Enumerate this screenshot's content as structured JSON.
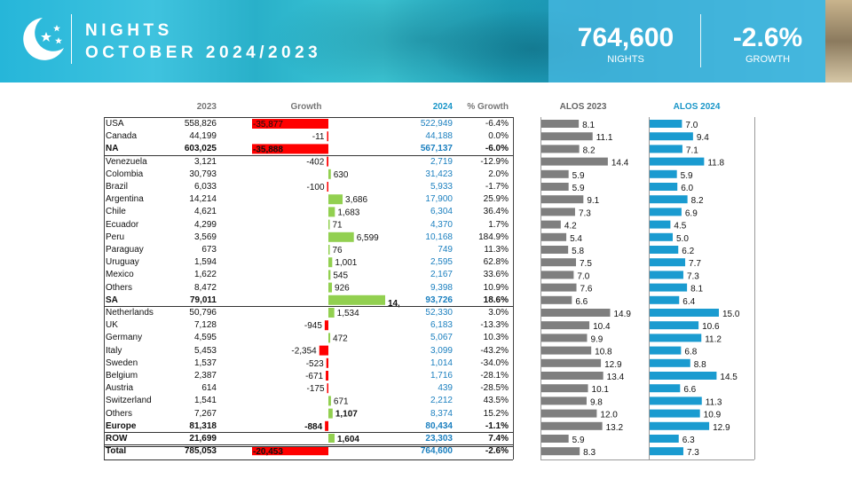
{
  "header": {
    "title_line1": "NIGHTS",
    "title_line2": "OCTOBER 2024/2023",
    "kpi_value": "764,600",
    "kpi_label": "NIGHTS",
    "growth_value": "-2.6%",
    "growth_label": "GROWTH",
    "icon": "moon-stars-icon"
  },
  "columns": {
    "y2023": "2023",
    "growth": "Growth",
    "y2024": "2024",
    "pct": "% Growth",
    "alos2023": "ALOS 2023",
    "alos2024": "ALOS 2024"
  },
  "colors": {
    "negative": "#ff0000",
    "positive": "#92d050",
    "alos2023": "#7f7f7f",
    "alos2024": "#1a9bd0",
    "blue_text": "#1a7fbf"
  },
  "chart_data": {
    "type": "table",
    "rows": [
      {
        "label": "USA",
        "v2023": "558,826",
        "growth": -35877,
        "growth_label": "-35,877",
        "v2024": "522,949",
        "pct": "-6.4%",
        "alos2023": 8.1,
        "alos2024": 7.0,
        "alos2023_label": "8.1",
        "alos2024_label": "7.0",
        "bold": false
      },
      {
        "label": "Canada",
        "v2023": "44,199",
        "growth": -11,
        "growth_label": "-11",
        "v2024": "44,188",
        "pct": "0.0%",
        "alos2023": 11.1,
        "alos2024": 9.4,
        "alos2023_label": "11.1",
        "alos2024_label": "9.4",
        "bold": false
      },
      {
        "label": "NA",
        "v2023": "603,025",
        "growth": -35888,
        "growth_label": "-35,888",
        "v2024": "567,137",
        "pct": "-6.0%",
        "alos2023": 8.2,
        "alos2024": 7.1,
        "alos2023_label": "8.2",
        "alos2024_label": "7.1",
        "bold": true
      },
      {
        "label": "Venezuela",
        "v2023": "3,121",
        "growth": -402,
        "growth_label": "-402",
        "v2024": "2,719",
        "pct": "-12.9%",
        "alos2023": 14.4,
        "alos2024": 11.8,
        "alos2023_label": "14.4",
        "alos2024_label": "11.8",
        "bold": false
      },
      {
        "label": "Colombia",
        "v2023": "30,793",
        "growth": 630,
        "growth_label": "630",
        "v2024": "31,423",
        "pct": "2.0%",
        "alos2023": 5.9,
        "alos2024": 5.9,
        "alos2023_label": "5.9",
        "alos2024_label": "5.9",
        "bold": false
      },
      {
        "label": "Brazil",
        "v2023": "6,033",
        "growth": -100,
        "growth_label": "-100",
        "v2024": "5,933",
        "pct": "-1.7%",
        "alos2023": 5.9,
        "alos2024": 6.0,
        "alos2023_label": "5.9",
        "alos2024_label": "6.0",
        "bold": false
      },
      {
        "label": "Argentina",
        "v2023": "14,214",
        "growth": 3686,
        "growth_label": "3,686",
        "v2024": "17,900",
        "pct": "25.9%",
        "alos2023": 9.1,
        "alos2024": 8.2,
        "alos2023_label": "9.1",
        "alos2024_label": "8.2",
        "bold": false
      },
      {
        "label": "Chile",
        "v2023": "4,621",
        "growth": 1683,
        "growth_label": "1,683",
        "v2024": "6,304",
        "pct": "36.4%",
        "alos2023": 7.3,
        "alos2024": 6.9,
        "alos2023_label": "7.3",
        "alos2024_label": "6.9",
        "bold": false
      },
      {
        "label": "Ecuador",
        "v2023": "4,299",
        "growth": 71,
        "growth_label": "71",
        "v2024": "4,370",
        "pct": "1.7%",
        "alos2023": 4.2,
        "alos2024": 4.5,
        "alos2023_label": "4.2",
        "alos2024_label": "4.5",
        "bold": false
      },
      {
        "label": "Peru",
        "v2023": "3,569",
        "growth": 6599,
        "growth_label": "6,599",
        "v2024": "10,168",
        "pct": "184.9%",
        "alos2023": 5.4,
        "alos2024": 5.0,
        "alos2023_label": "5.4",
        "alos2024_label": "5.0",
        "bold": false
      },
      {
        "label": "Paraguay",
        "v2023": "673",
        "growth": 76,
        "growth_label": "76",
        "v2024": "749",
        "pct": "11.3%",
        "alos2023": 5.8,
        "alos2024": 6.2,
        "alos2023_label": "5.8",
        "alos2024_label": "6.2",
        "bold": false
      },
      {
        "label": "Uruguay",
        "v2023": "1,594",
        "growth": 1001,
        "growth_label": "1,001",
        "v2024": "2,595",
        "pct": "62.8%",
        "alos2023": 7.5,
        "alos2024": 7.7,
        "alos2023_label": "7.5",
        "alos2024_label": "7.7",
        "bold": false
      },
      {
        "label": "Mexico",
        "v2023": "1,622",
        "growth": 545,
        "growth_label": "545",
        "v2024": "2,167",
        "pct": "33.6%",
        "alos2023": 7.0,
        "alos2024": 7.3,
        "alos2023_label": "7.0",
        "alos2024_label": "7.3",
        "bold": false
      },
      {
        "label": "Others",
        "v2023": "8,472",
        "growth": 926,
        "growth_label": "926",
        "v2024": "9,398",
        "pct": "10.9%",
        "alos2023": 7.6,
        "alos2024": 8.1,
        "alos2023_label": "7.6",
        "alos2024_label": "8.1",
        "bold": false
      },
      {
        "label": "SA",
        "v2023": "79,011",
        "growth": 14715,
        "growth_label": "14,715",
        "v2024": "93,726",
        "pct": "18.6%",
        "alos2023": 6.6,
        "alos2024": 6.4,
        "alos2023_label": "6.6",
        "alos2024_label": "6.4",
        "bold": true
      },
      {
        "label": "Netherlands",
        "v2023": "50,796",
        "growth": 1534,
        "growth_label": "1,534",
        "v2024": "52,330",
        "pct": "3.0%",
        "alos2023": 14.9,
        "alos2024": 15.0,
        "alos2023_label": "14.9",
        "alos2024_label": "15.0",
        "bold": false
      },
      {
        "label": "UK",
        "v2023": "7,128",
        "growth": -945,
        "growth_label": "-945",
        "v2024": "6,183",
        "pct": "-13.3%",
        "alos2023": 10.4,
        "alos2024": 10.6,
        "alos2023_label": "10.4",
        "alos2024_label": "10.6",
        "bold": false
      },
      {
        "label": "Germany",
        "v2023": "4,595",
        "growth": 472,
        "growth_label": "472",
        "v2024": "5,067",
        "pct": "10.3%",
        "alos2023": 9.9,
        "alos2024": 11.2,
        "alos2023_label": "9.9",
        "alos2024_label": "11.2",
        "bold": false
      },
      {
        "label": "Italy",
        "v2023": "5,453",
        "growth": -2354,
        "growth_label": "-2,354",
        "v2024": "3,099",
        "pct": "-43.2%",
        "alos2023": 10.8,
        "alos2024": 6.8,
        "alos2023_label": "10.8",
        "alos2024_label": "6.8",
        "bold": false
      },
      {
        "label": "Sweden",
        "v2023": "1,537",
        "growth": -523,
        "growth_label": "-523",
        "v2024": "1,014",
        "pct": "-34.0%",
        "alos2023": 12.9,
        "alos2024": 8.8,
        "alos2023_label": "12.9",
        "alos2024_label": "8.8",
        "bold": false
      },
      {
        "label": "Belgium",
        "v2023": "2,387",
        "growth": -671,
        "growth_label": "-671",
        "v2024": "1,716",
        "pct": "-28.1%",
        "alos2023": 13.4,
        "alos2024": 14.5,
        "alos2023_label": "13.4",
        "alos2024_label": "14.5",
        "bold": false
      },
      {
        "label": "Austria",
        "v2023": "614",
        "growth": -175,
        "growth_label": "-175",
        "v2024": "439",
        "pct": "-28.5%",
        "alos2023": 10.1,
        "alos2024": 6.6,
        "alos2023_label": "10.1",
        "alos2024_label": "6.6",
        "bold": false
      },
      {
        "label": "Switzerland",
        "v2023": "1,541",
        "growth": 671,
        "growth_label": "671",
        "v2024": "2,212",
        "pct": "43.5%",
        "alos2023": 9.8,
        "alos2024": 11.3,
        "alos2023_label": "9.8",
        "alos2024_label": "11.3",
        "bold": false
      },
      {
        "label": "Others",
        "v2023": "7,267",
        "growth": 1107,
        "growth_label": "1,107",
        "v2024": "8,374",
        "pct": "15.2%",
        "alos2023": 12.0,
        "alos2024": 10.9,
        "alos2023_label": "12.0",
        "alos2024_label": "10.9",
        "bold": false,
        "growth_bold": true
      },
      {
        "label": "Europe",
        "v2023": "81,318",
        "growth": -884,
        "growth_label": "-884",
        "v2024": "80,434",
        "pct": "-1.1%",
        "alos2023": 13.2,
        "alos2024": 12.9,
        "alos2023_label": "13.2",
        "alos2024_label": "12.9",
        "bold": true
      },
      {
        "label": "ROW",
        "v2023": "21,699",
        "growth": 1604,
        "growth_label": "1,604",
        "v2024": "23,303",
        "pct": "7.4%",
        "alos2023": 5.9,
        "alos2024": 6.3,
        "alos2023_label": "5.9",
        "alos2024_label": "6.3",
        "bold": true
      },
      {
        "label": "Total",
        "v2023": "785,053",
        "growth": -20453,
        "growth_label": "-20,453",
        "v2024": "764,600",
        "pct": "-2.6%",
        "alos2023": 8.3,
        "alos2024": 7.3,
        "alos2023_label": "8.3",
        "alos2024_label": "7.3",
        "bold": true
      }
    ]
  }
}
